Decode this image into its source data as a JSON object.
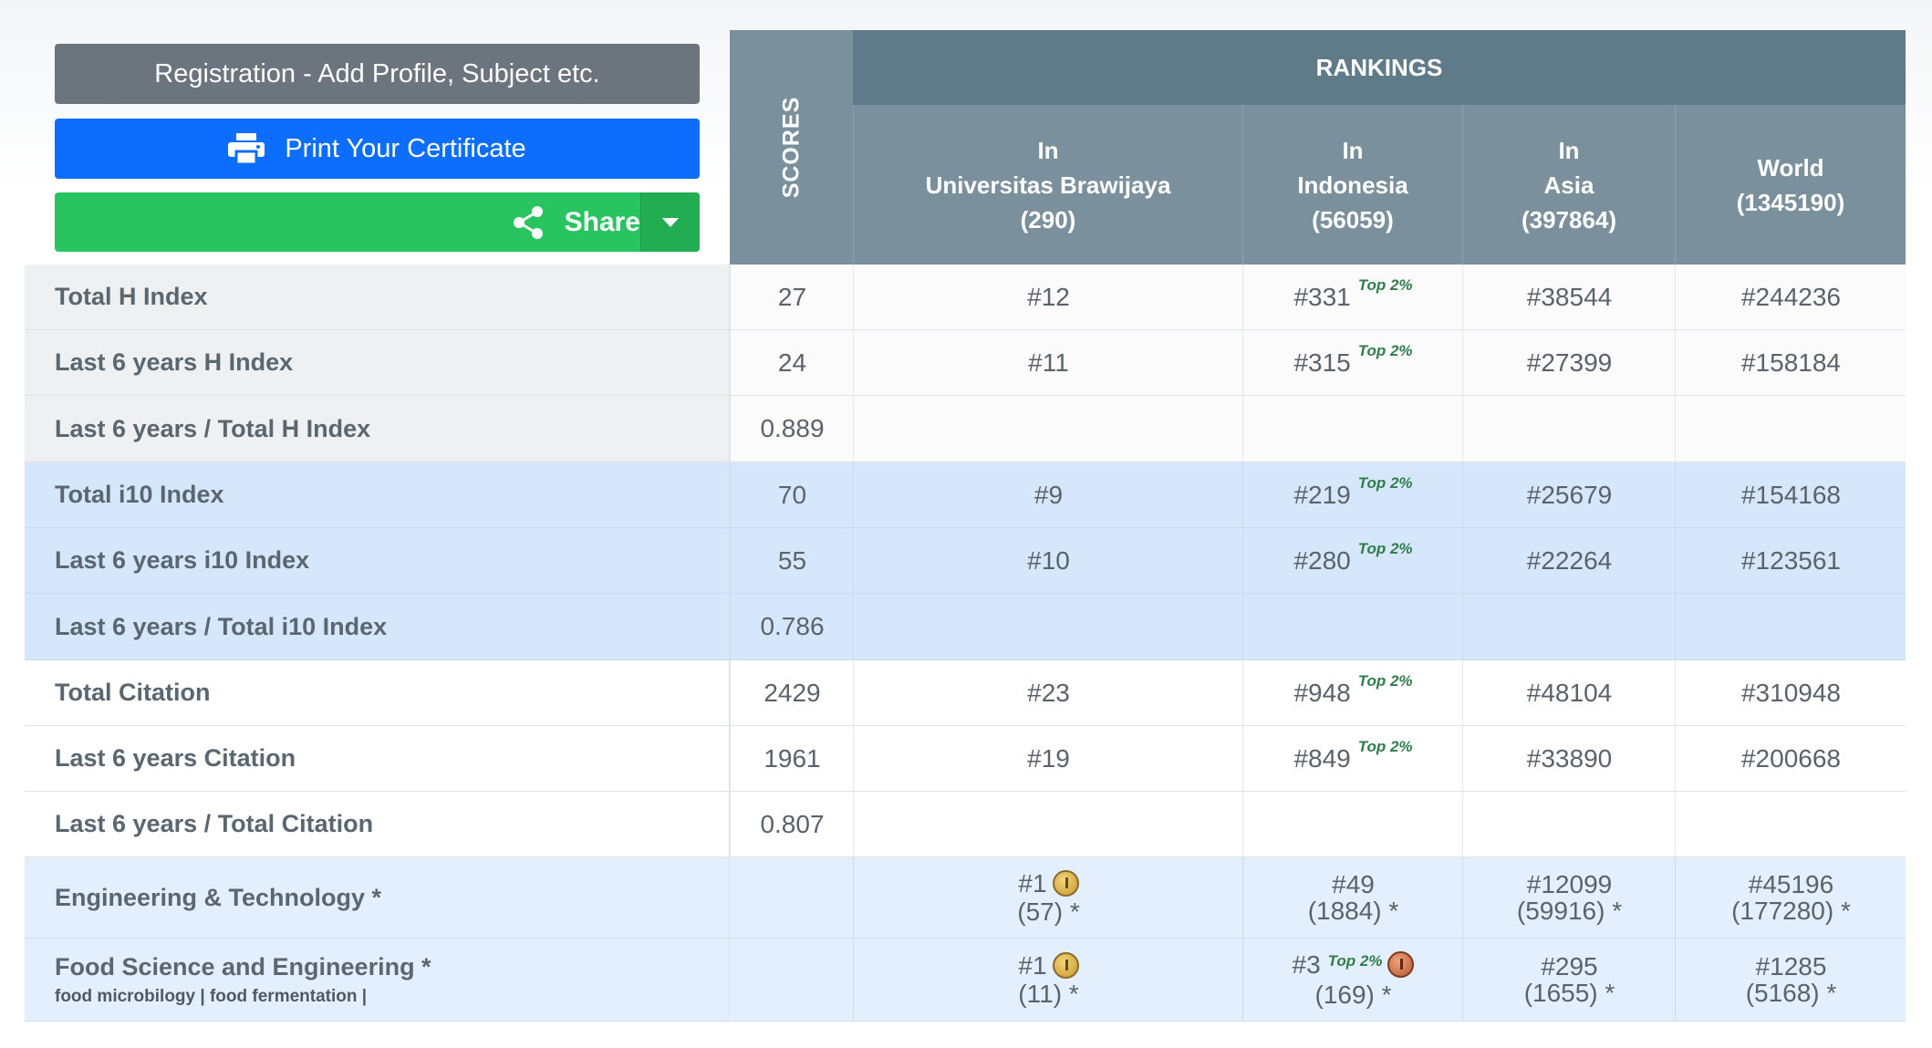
{
  "buttons": {
    "registration": "Registration - Add Profile, Subject etc.",
    "print": "Print Your Certificate",
    "share": "Share"
  },
  "header": {
    "scores": "SCORES",
    "rankings": "RANKINGS",
    "columns": [
      {
        "line1": "In",
        "line2": "Universitas Brawijaya",
        "line3": "(290)"
      },
      {
        "line1": "In",
        "line2": "Indonesia",
        "line3": "(56059)"
      },
      {
        "line1": "In",
        "line2": "Asia",
        "line3": "(397864)"
      },
      {
        "line1": "World",
        "line2": "(1345190)",
        "line3": ""
      }
    ]
  },
  "top_badge": "Top 2%",
  "rows": [
    {
      "label": "Total H Index",
      "score": "27",
      "uni": "#12",
      "indonesia": "#331",
      "asia": "#38544",
      "world": "#244236"
    },
    {
      "label": "Last 6 years H Index",
      "score": "24",
      "uni": "#11",
      "indonesia": "#315",
      "asia": "#27399",
      "world": "#158184"
    },
    {
      "label": "Last 6 years / Total H Index",
      "score": "0.889",
      "uni": "",
      "indonesia": "",
      "asia": "",
      "world": ""
    },
    {
      "label": "Total i10 Index",
      "score": "70",
      "uni": "#9",
      "indonesia": "#219",
      "asia": "#25679",
      "world": "#154168"
    },
    {
      "label": "Last 6 years i10 Index",
      "score": "55",
      "uni": "#10",
      "indonesia": "#280",
      "asia": "#22264",
      "world": "#123561"
    },
    {
      "label": "Last 6 years / Total i10 Index",
      "score": "0.786",
      "uni": "",
      "indonesia": "",
      "asia": "",
      "world": ""
    },
    {
      "label": "Total Citation",
      "score": "2429",
      "uni": "#23",
      "indonesia": "#948",
      "asia": "#48104",
      "world": "#310948"
    },
    {
      "label": "Last 6 years Citation",
      "score": "1961",
      "uni": "#19",
      "indonesia": "#849",
      "asia": "#33890",
      "world": "#200668"
    },
    {
      "label": "Last 6 years / Total Citation",
      "score": "0.807",
      "uni": "",
      "indonesia": "",
      "asia": "",
      "world": ""
    }
  ],
  "subjects": [
    {
      "label": "Engineering & Technology *",
      "tags": "",
      "uni_rank": "#1",
      "uni_count": "(57) *",
      "ind_rank": "#49",
      "ind_count": "(1884) *",
      "asia_rank": "#12099",
      "asia_count": "(59916) *",
      "world_rank": "#45196",
      "world_count": "(177280) *"
    },
    {
      "label": "Food Science and Engineering *",
      "tags": "food microbilogy | food fermentation |",
      "uni_rank": "#1",
      "uni_count": "(11) *",
      "ind_rank": "#3",
      "ind_count": "(169) *",
      "asia_rank": "#295",
      "asia_count": "(1655) *",
      "world_rank": "#1285",
      "world_count": "(5168) *"
    }
  ]
}
